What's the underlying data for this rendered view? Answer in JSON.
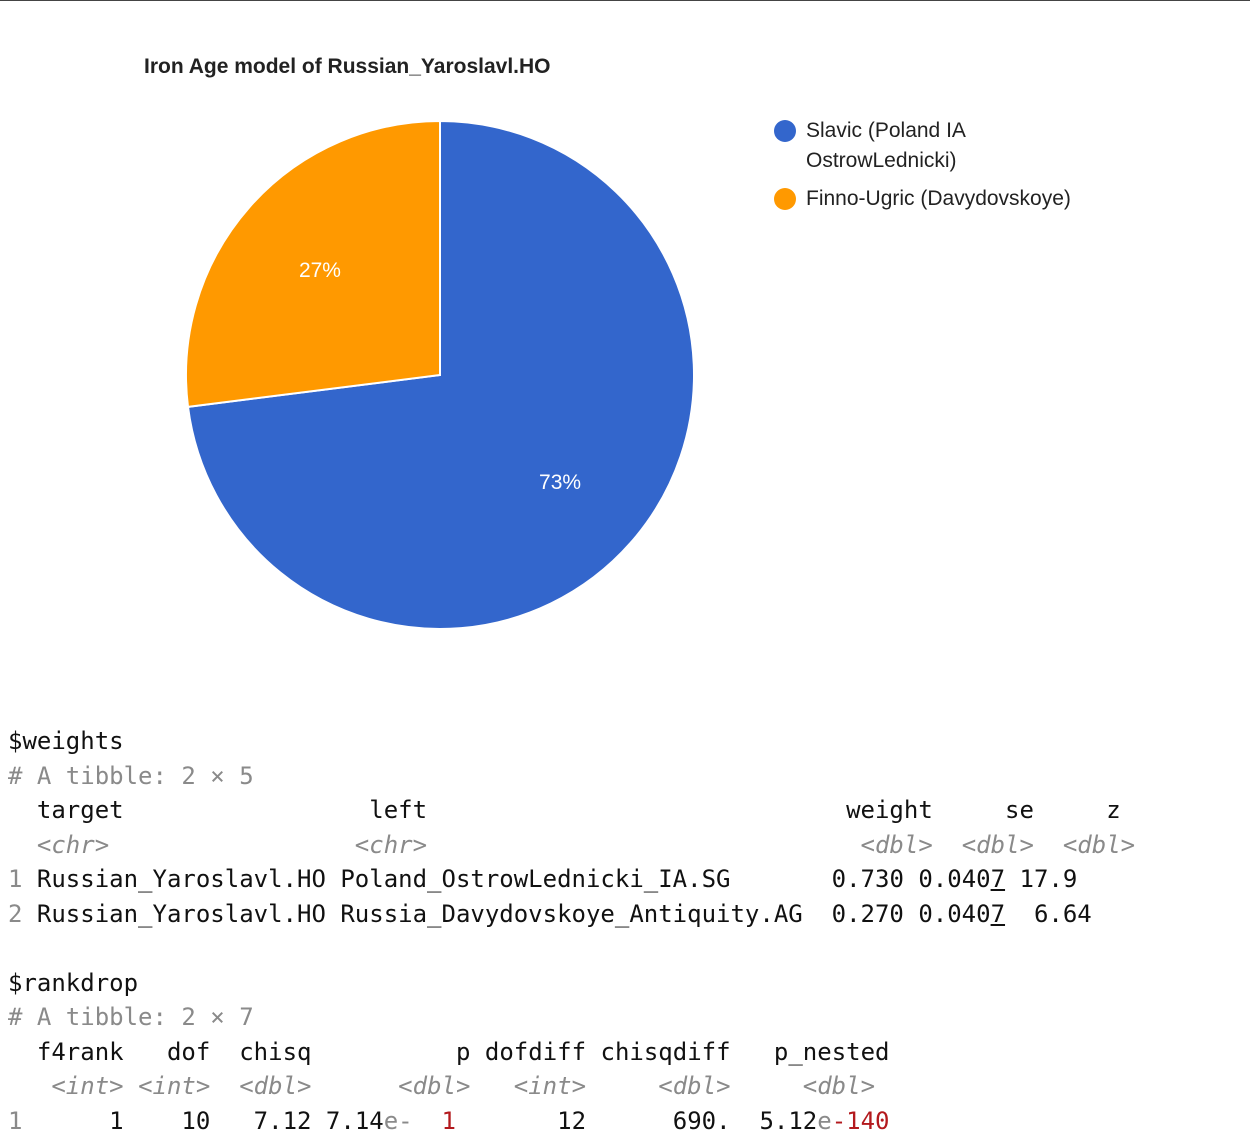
{
  "chart_data": {
    "type": "pie",
    "title": "Iron Age model of Russian_Yaroslavl.HO",
    "slices": [
      {
        "label": "Slavic (Poland IA OstrowLednicki)",
        "value": 73,
        "display": "73%",
        "color": "#3366cc"
      },
      {
        "label": "Finno-Ugric (Davydovskoye)",
        "value": 27,
        "display": "27%",
        "color": "#ff9900"
      }
    ],
    "legend_position": "right"
  },
  "legend": {
    "item1_line1": "Slavic (Poland IA",
    "item1_line2": "OstrowLednicki)",
    "item2": "Finno-Ugric (Davydovskoye)"
  },
  "console": {
    "weights_header": "$weights",
    "weights_tibble": "# A tibble: 2 × 5",
    "weights_cols": [
      "target",
      "left",
      "weight",
      "se",
      "z"
    ],
    "weights_types": [
      "<chr>",
      "<chr>",
      "<dbl>",
      "<dbl>",
      "<dbl>"
    ],
    "weights_rows": [
      {
        "idx": "1",
        "target": "Russian_Yaroslavl.HO",
        "left": "Poland_OstrowLednicki_IA.SG",
        "weight": "0.730",
        "se_main": "0.040",
        "se_under": "7",
        "z": "17.9"
      },
      {
        "idx": "2",
        "target": "Russian_Yaroslavl.HO",
        "left": "Russia_Davydovskoye_Antiquity.AG",
        "weight": "0.270",
        "se_main": "0.040",
        "se_under": "7",
        "z": "6.64"
      }
    ],
    "rankdrop_header": "$rankdrop",
    "rankdrop_tibble": "# A tibble: 2 × 7",
    "rankdrop_cols": [
      "f4rank",
      "dof",
      "chisq",
      "p",
      "dofdiff",
      "chisqdiff",
      "p_nested"
    ],
    "rankdrop_types": [
      "<int>",
      "<int>",
      "<dbl>",
      "<dbl>",
      "<int>",
      "<dbl>",
      "<dbl>"
    ],
    "rankdrop_row": {
      "idx": "1",
      "f4rank": "1",
      "dof": "10",
      "chisq": "7.12",
      "p_mant": "7.14",
      "p_e": "e-",
      "p_exp": "1",
      "dofdiff": "12",
      "chisqdiff": "690.",
      "pn_mant": "5.12",
      "pn_e": "e",
      "pn_exp": "-140"
    }
  }
}
